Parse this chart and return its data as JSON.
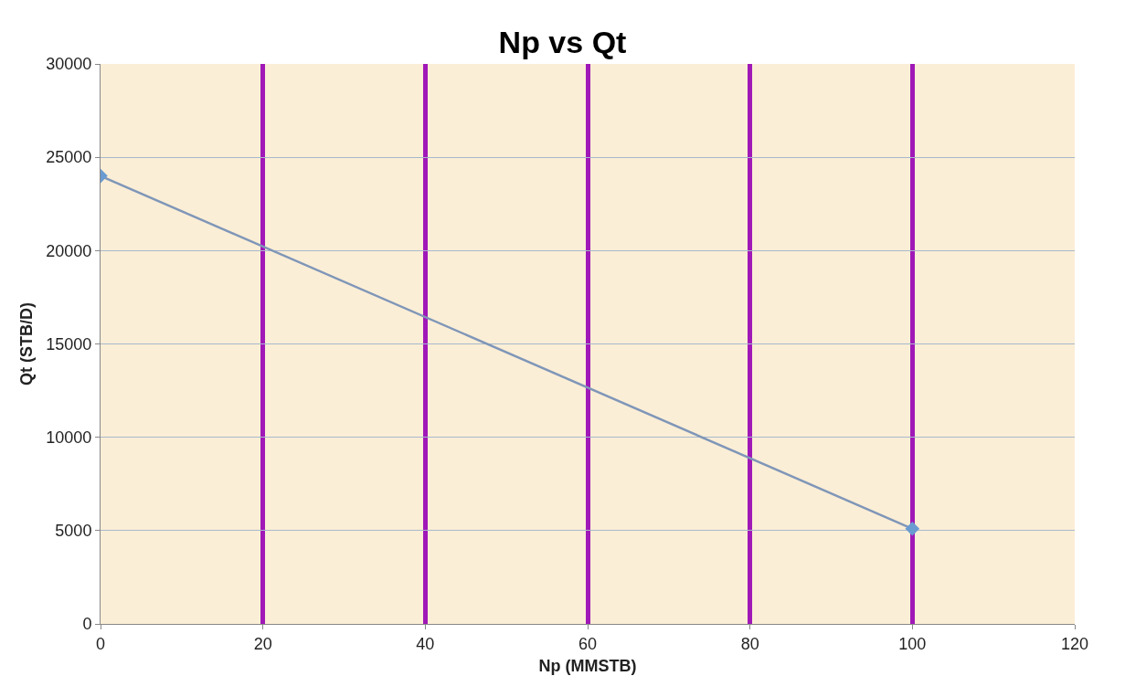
{
  "chart_data": {
    "type": "line",
    "title": "Np vs Qt",
    "xlabel": "Np (MMSTB)",
    "ylabel": "Qt (STB/D)",
    "x": [
      0,
      100
    ],
    "series": [
      {
        "color": "#7f96b8",
        "values": [
          24000,
          5100
        ]
      }
    ],
    "marker": "diamond",
    "xlim": [
      0,
      120
    ],
    "xticks": [
      0,
      20,
      40,
      60,
      80,
      100,
      120
    ],
    "ylim": [
      0,
      30000
    ],
    "yticks": [
      0,
      5000,
      10000,
      15000,
      20000,
      25000,
      30000
    ],
    "grid": true
  }
}
